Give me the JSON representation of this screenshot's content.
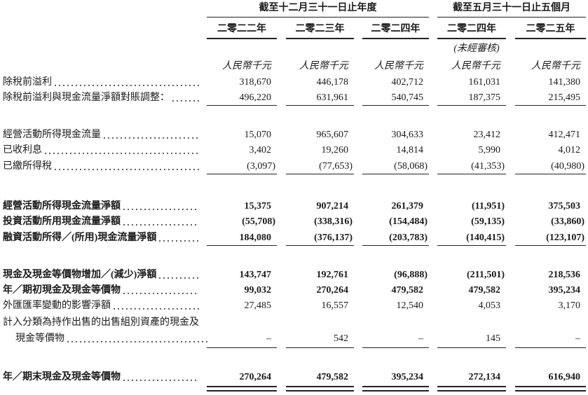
{
  "header": {
    "group_1": "截至十二月三十一日止年度",
    "group_2": "截至五月三十一日止五個月",
    "columns": [
      "二零二二年",
      "二零二三年",
      "二零二四年",
      "二零二四年",
      "二零二五年"
    ],
    "unaudited": "(未經審核)",
    "units": [
      "人民幣千元",
      "人民幣千元",
      "人民幣千元",
      "人民幣千元",
      "人民幣千元"
    ]
  },
  "rows": [
    {
      "label": "除稅前溢利",
      "values": [
        "318,670",
        "446,178",
        "402,712",
        "161,031",
        "141,380"
      ],
      "bold": false
    },
    {
      "label": "除稅前溢利與現金流量淨額對賬調整：",
      "values": [
        "496,220",
        "631,961",
        "540,745",
        "187,375",
        "215,495"
      ],
      "bold": false
    },
    {
      "label": "經營活動所得現金流量",
      "values": [
        "15,070",
        "965,607",
        "304,633",
        "23,412",
        "412,471"
      ],
      "bold": false
    },
    {
      "label": "已收利息",
      "values": [
        "3,402",
        "19,260",
        "14,814",
        "5,990",
        "4,012"
      ],
      "bold": false
    },
    {
      "label": "已繳所得稅",
      "values": [
        "(3,097)",
        "(77,653)",
        "(58,068)",
        "(41,353)",
        "(40,980)"
      ],
      "bold": false
    },
    {
      "label": "經營活動所得現金流量淨額",
      "values": [
        "15,375",
        "907,214",
        "261,379",
        "(11,951)",
        "375,503"
      ],
      "bold": true
    },
    {
      "label": "投資活動所用現金流量淨額",
      "values": [
        "(55,708)",
        "(338,316)",
        "(154,484)",
        "(59,135)",
        "(33,860)"
      ],
      "bold": true
    },
    {
      "label": "融資活動所得／(所用)現金流量淨額",
      "values": [
        "184,080",
        "(376,137)",
        "(203,783)",
        "(140,415)",
        "(123,107)"
      ],
      "bold": true
    },
    {
      "label": "現金及現金等價物增加／(減少)淨額",
      "values": [
        "143,747",
        "192,761",
        "(96,888)",
        "(211,501)",
        "218,536"
      ],
      "bold": true
    },
    {
      "label": "年／期初現金及現金等價物",
      "values": [
        "99,032",
        "270,264",
        "479,582",
        "479,582",
        "395,234"
      ],
      "bold": true
    },
    {
      "label": "外匯匯率變動的影響淨額",
      "values": [
        "27,485",
        "16,557",
        "12,540",
        "4,053",
        "3,170"
      ],
      "bold": false
    },
    {
      "label": [
        "計入分類為持作出售的出售組別資產的現金及",
        "現金等價物"
      ],
      "values": [
        "–",
        "542",
        "–",
        "145",
        "–"
      ],
      "bold": false
    },
    {
      "label": "年／期末現金及現金等價物",
      "values": [
        "270,264",
        "479,582",
        "395,234",
        "272,134",
        "616,940"
      ],
      "bold": true
    }
  ]
}
